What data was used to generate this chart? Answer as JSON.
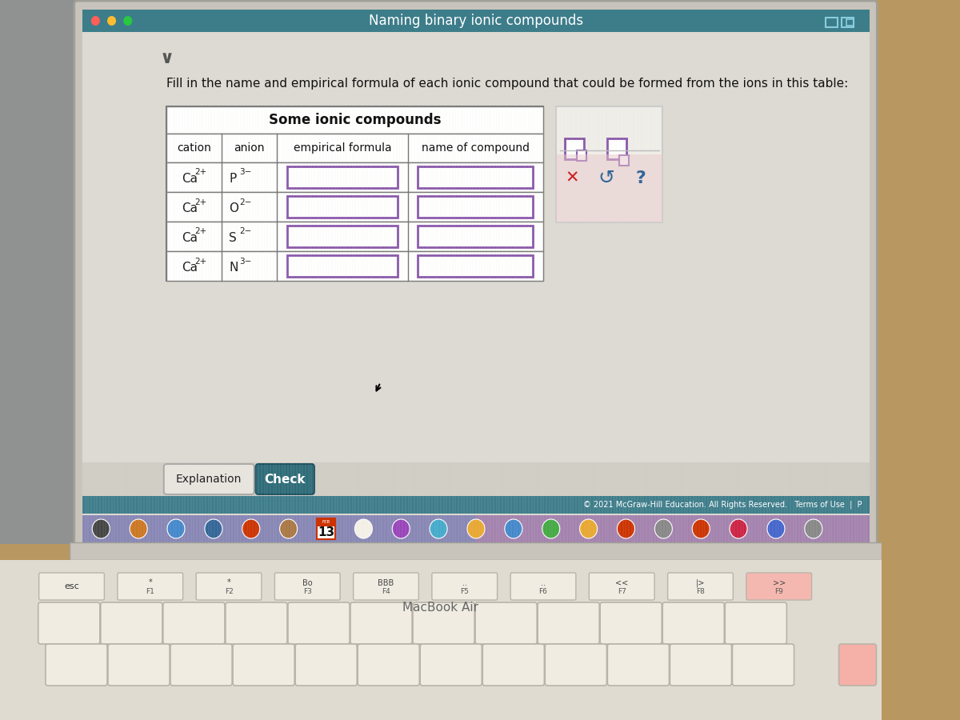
{
  "title": "Naming binary ionic compounds",
  "title_bar_color": "#3d7d8a",
  "instruction": "Fill in the name and empirical formula of each ionic compound that could be formed from the ions in this table:",
  "table_title": "Some ionic compounds",
  "col_headers": [
    "cation",
    "anion",
    "empirical formula",
    "name of compound"
  ],
  "rows": [
    {
      "cation": "Ca",
      "cation_charge": "2+",
      "anion": "P",
      "anion_charge": "3−"
    },
    {
      "cation": "Ca",
      "cation_charge": "2+",
      "anion": "O",
      "anion_charge": "2−"
    },
    {
      "cation": "Ca",
      "cation_charge": "2+",
      "anion": "S",
      "anion_charge": "2−"
    },
    {
      "cation": "Ca",
      "cation_charge": "2+",
      "anion": "N",
      "anion_charge": "3−"
    }
  ],
  "screen_bg": "#dcdad2",
  "screen_stripe_bg": "#e8e5dd",
  "table_bg": "#ffffff",
  "input_box_border": "#8855aa",
  "check_button_color": "#2d6b78",
  "check_button_text": "Check",
  "explanation_button_text": "Explanation",
  "footer_text": "© 2021 McGraw-Hill Education. All Rights Reserved.   Terms of Use  |  P",
  "macbook_text": "MacBook Air",
  "calendar_date": "13",
  "side_panel_bg": "#f0eee8",
  "side_panel_border": "#cccccc",
  "btn_bar_bg": "#d0cdc5",
  "footer_bar_bg": "#3d7d8a",
  "laptop_bezel_color": "#c8c4bc",
  "laptop_body_color": "#d4d0c8",
  "keyboard_bg": "#e0dbd0",
  "key_color": "#f0ece2",
  "key_border": "#b8b4a8",
  "desk_color": "#b89860",
  "dock_gradient_left": "#7070a0",
  "dock_gradient_right": "#c080a0",
  "left_bar_color": "#8090a8"
}
